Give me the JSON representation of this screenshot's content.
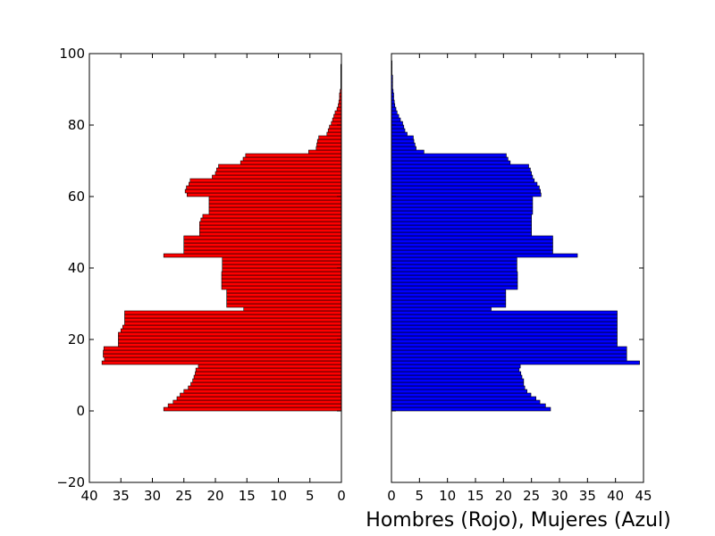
{
  "chart_data": {
    "type": "bar",
    "xlabel": "Hombres (Rojo), Mujeres (Azul)",
    "colors": {
      "men": "#ff0000",
      "women": "#0000ff",
      "edge": "#000000"
    },
    "panels": [
      {
        "name": "Hombres",
        "orientation": "horizontal",
        "x_direction": "reversed",
        "xlim": [
          0,
          40
        ],
        "ylim": [
          -20,
          100
        ],
        "xticks": [
          "40",
          "35",
          "30",
          "25",
          "20",
          "15",
          "10",
          "5",
          "0"
        ],
        "yticks": [
          "100",
          "80",
          "60",
          "40",
          "20",
          "0",
          "−20"
        ],
        "ages": [
          0,
          1,
          2,
          3,
          4,
          5,
          6,
          7,
          8,
          9,
          10,
          11,
          12,
          13,
          14,
          15,
          16,
          17,
          18,
          19,
          20,
          21,
          22,
          23,
          24,
          25,
          26,
          27,
          28,
          29,
          30,
          31,
          32,
          33,
          34,
          35,
          36,
          37,
          38,
          39,
          40,
          41,
          42,
          43,
          44,
          45,
          46,
          47,
          48,
          49,
          50,
          51,
          52,
          53,
          54,
          55,
          56,
          57,
          58,
          59,
          60,
          61,
          62,
          63,
          64,
          65,
          66,
          67,
          68,
          69,
          70,
          71,
          72,
          73,
          74,
          75,
          76,
          77,
          78,
          79,
          80,
          81,
          82,
          83,
          84,
          85,
          86,
          87,
          88,
          89,
          90,
          91,
          92,
          93,
          94,
          95,
          96,
          97,
          98,
          99
        ],
        "values": [
          28.2,
          27.5,
          26.7,
          26.1,
          25.6,
          25.0,
          24.3,
          23.9,
          23.6,
          23.4,
          23.2,
          23.1,
          22.7,
          38.0,
          37.6,
          37.8,
          37.8,
          37.7,
          35.4,
          35.4,
          35.4,
          35.4,
          35.0,
          34.7,
          34.4,
          34.4,
          34.4,
          34.4,
          15.5,
          18.2,
          18.2,
          18.2,
          18.2,
          18.2,
          19.0,
          19.0,
          19.0,
          19.0,
          19.0,
          18.9,
          18.9,
          18.9,
          18.9,
          28.2,
          25.0,
          25.0,
          25.0,
          25.0,
          25.0,
          22.5,
          22.5,
          22.5,
          22.5,
          22.3,
          22.0,
          21.0,
          21.0,
          21.0,
          21.0,
          21.0,
          24.5,
          24.8,
          24.6,
          24.2,
          24.0,
          20.5,
          20.0,
          19.8,
          19.5,
          16.0,
          15.6,
          15.2,
          5.2,
          4.0,
          3.9,
          3.8,
          3.6,
          2.3,
          2.1,
          1.9,
          1.6,
          1.4,
          1.2,
          1.0,
          0.7,
          0.5,
          0.4,
          0.3,
          0.3,
          0.2,
          0.1,
          0.1,
          0.1,
          0.1,
          0.1,
          0.1,
          0.1,
          0.0,
          0.0,
          0.0
        ]
      },
      {
        "name": "Mujeres",
        "orientation": "horizontal",
        "x_direction": "normal",
        "xlim": [
          0,
          45
        ],
        "ylim": [
          -20,
          100
        ],
        "xticks": [
          "0",
          "5",
          "10",
          "15",
          "20",
          "25",
          "30",
          "35",
          "40",
          "45"
        ],
        "ages": [
          0,
          1,
          2,
          3,
          4,
          5,
          6,
          7,
          8,
          9,
          10,
          11,
          12,
          13,
          14,
          15,
          16,
          17,
          18,
          19,
          20,
          21,
          22,
          23,
          24,
          25,
          26,
          27,
          28,
          29,
          30,
          31,
          32,
          33,
          34,
          35,
          36,
          37,
          38,
          39,
          40,
          41,
          42,
          43,
          44,
          45,
          46,
          47,
          48,
          49,
          50,
          51,
          52,
          53,
          54,
          55,
          56,
          57,
          58,
          59,
          60,
          61,
          62,
          63,
          64,
          65,
          66,
          67,
          68,
          69,
          70,
          71,
          72,
          73,
          74,
          75,
          76,
          77,
          78,
          79,
          80,
          81,
          82,
          83,
          84,
          85,
          86,
          87,
          88,
          89,
          90,
          91,
          92,
          93,
          94,
          95,
          96,
          97,
          98,
          99
        ],
        "values": [
          28.4,
          27.5,
          26.5,
          25.8,
          24.9,
          24.2,
          23.8,
          23.6,
          23.6,
          23.3,
          23.1,
          22.8,
          23.0,
          44.3,
          42.0,
          42.0,
          42.0,
          42.0,
          40.3,
          40.3,
          40.3,
          40.3,
          40.3,
          40.3,
          40.3,
          40.3,
          40.3,
          40.3,
          17.8,
          20.4,
          20.4,
          20.4,
          20.4,
          20.4,
          22.5,
          22.5,
          22.5,
          22.5,
          22.5,
          22.4,
          22.4,
          22.4,
          22.4,
          33.2,
          28.8,
          28.8,
          28.8,
          28.8,
          28.8,
          25.0,
          25.0,
          25.0,
          25.0,
          25.0,
          25.0,
          25.2,
          25.2,
          25.2,
          25.2,
          25.2,
          26.7,
          26.6,
          26.4,
          26.0,
          25.5,
          25.2,
          25.0,
          24.8,
          24.5,
          21.2,
          20.8,
          20.5,
          5.8,
          4.4,
          4.2,
          4.0,
          3.9,
          2.8,
          2.4,
          2.2,
          2.0,
          1.6,
          1.3,
          1.0,
          0.8,
          0.6,
          0.5,
          0.4,
          0.4,
          0.3,
          0.2,
          0.2,
          0.2,
          0.2,
          0.1,
          0.1,
          0.1,
          0.1,
          0.0,
          0.0
        ]
      }
    ]
  }
}
